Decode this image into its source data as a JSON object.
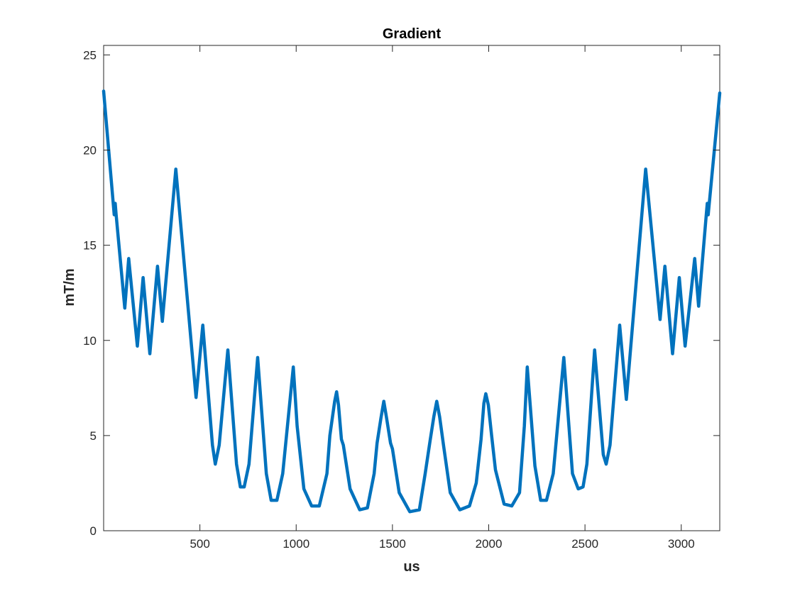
{
  "chart_data": {
    "type": "line",
    "title": "Gradient",
    "xlabel": "us",
    "ylabel": "mT/m",
    "xlim": [
      0,
      3200
    ],
    "ylim": [
      0,
      25.5
    ],
    "xticks": [
      500,
      1000,
      1500,
      2000,
      2500,
      3000
    ],
    "yticks": [
      0,
      5,
      10,
      15,
      20,
      25
    ],
    "grid": false,
    "series": [
      {
        "color": "#0072BD",
        "points": [
          [
            0,
            23.1
          ],
          [
            55,
            16.6
          ],
          [
            60,
            17.2
          ],
          [
            65,
            16.6
          ],
          [
            110,
            11.7
          ],
          [
            130,
            14.3
          ],
          [
            175,
            9.7
          ],
          [
            205,
            13.3
          ],
          [
            240,
            9.3
          ],
          [
            280,
            13.9
          ],
          [
            305,
            11.0
          ],
          [
            375,
            19.0
          ],
          [
            480,
            7.0
          ],
          [
            515,
            10.8
          ],
          [
            565,
            4.5
          ],
          [
            580,
            3.5
          ],
          [
            600,
            4.5
          ],
          [
            645,
            9.5
          ],
          [
            690,
            3.5
          ],
          [
            710,
            2.3
          ],
          [
            730,
            2.3
          ],
          [
            755,
            3.5
          ],
          [
            800,
            9.1
          ],
          [
            845,
            3.0
          ],
          [
            870,
            1.6
          ],
          [
            900,
            1.6
          ],
          [
            930,
            3.0
          ],
          [
            985,
            8.6
          ],
          [
            1005,
            5.5
          ],
          [
            1040,
            2.2
          ],
          [
            1080,
            1.3
          ],
          [
            1120,
            1.3
          ],
          [
            1160,
            3.0
          ],
          [
            1175,
            5.0
          ],
          [
            1200,
            6.8
          ],
          [
            1210,
            7.3
          ],
          [
            1220,
            6.6
          ],
          [
            1235,
            4.8
          ],
          [
            1245,
            4.5
          ],
          [
            1280,
            2.2
          ],
          [
            1330,
            1.1
          ],
          [
            1370,
            1.2
          ],
          [
            1405,
            3.0
          ],
          [
            1420,
            4.6
          ],
          [
            1440,
            5.9
          ],
          [
            1455,
            6.8
          ],
          [
            1470,
            5.9
          ],
          [
            1490,
            4.6
          ],
          [
            1500,
            4.3
          ],
          [
            1535,
            2.0
          ],
          [
            1590,
            1.0
          ],
          [
            1640,
            1.1
          ],
          [
            1670,
            3.0
          ],
          [
            1695,
            4.7
          ],
          [
            1715,
            6.0
          ],
          [
            1730,
            6.8
          ],
          [
            1745,
            6.0
          ],
          [
            1765,
            4.5
          ],
          [
            1800,
            2.0
          ],
          [
            1850,
            1.1
          ],
          [
            1900,
            1.3
          ],
          [
            1935,
            2.5
          ],
          [
            1960,
            4.8
          ],
          [
            1975,
            6.7
          ],
          [
            1985,
            7.2
          ],
          [
            1998,
            6.6
          ],
          [
            2015,
            5.0
          ],
          [
            2035,
            3.2
          ],
          [
            2080,
            1.4
          ],
          [
            2120,
            1.3
          ],
          [
            2160,
            2.0
          ],
          [
            2185,
            5.5
          ],
          [
            2200,
            8.6
          ],
          [
            2240,
            3.4
          ],
          [
            2270,
            1.6
          ],
          [
            2300,
            1.6
          ],
          [
            2335,
            3.0
          ],
          [
            2390,
            9.1
          ],
          [
            2435,
            3.0
          ],
          [
            2465,
            2.2
          ],
          [
            2490,
            2.3
          ],
          [
            2510,
            3.5
          ],
          [
            2550,
            9.5
          ],
          [
            2595,
            4.0
          ],
          [
            2610,
            3.5
          ],
          [
            2630,
            4.5
          ],
          [
            2680,
            10.8
          ],
          [
            2715,
            6.9
          ],
          [
            2815,
            19.0
          ],
          [
            2890,
            11.1
          ],
          [
            2915,
            13.9
          ],
          [
            2955,
            9.3
          ],
          [
            2990,
            13.3
          ],
          [
            3020,
            9.7
          ],
          [
            3070,
            14.3
          ],
          [
            3090,
            11.8
          ],
          [
            3130,
            16.6
          ],
          [
            3135,
            17.2
          ],
          [
            3140,
            16.6
          ],
          [
            3200,
            23.0
          ]
        ]
      }
    ]
  }
}
